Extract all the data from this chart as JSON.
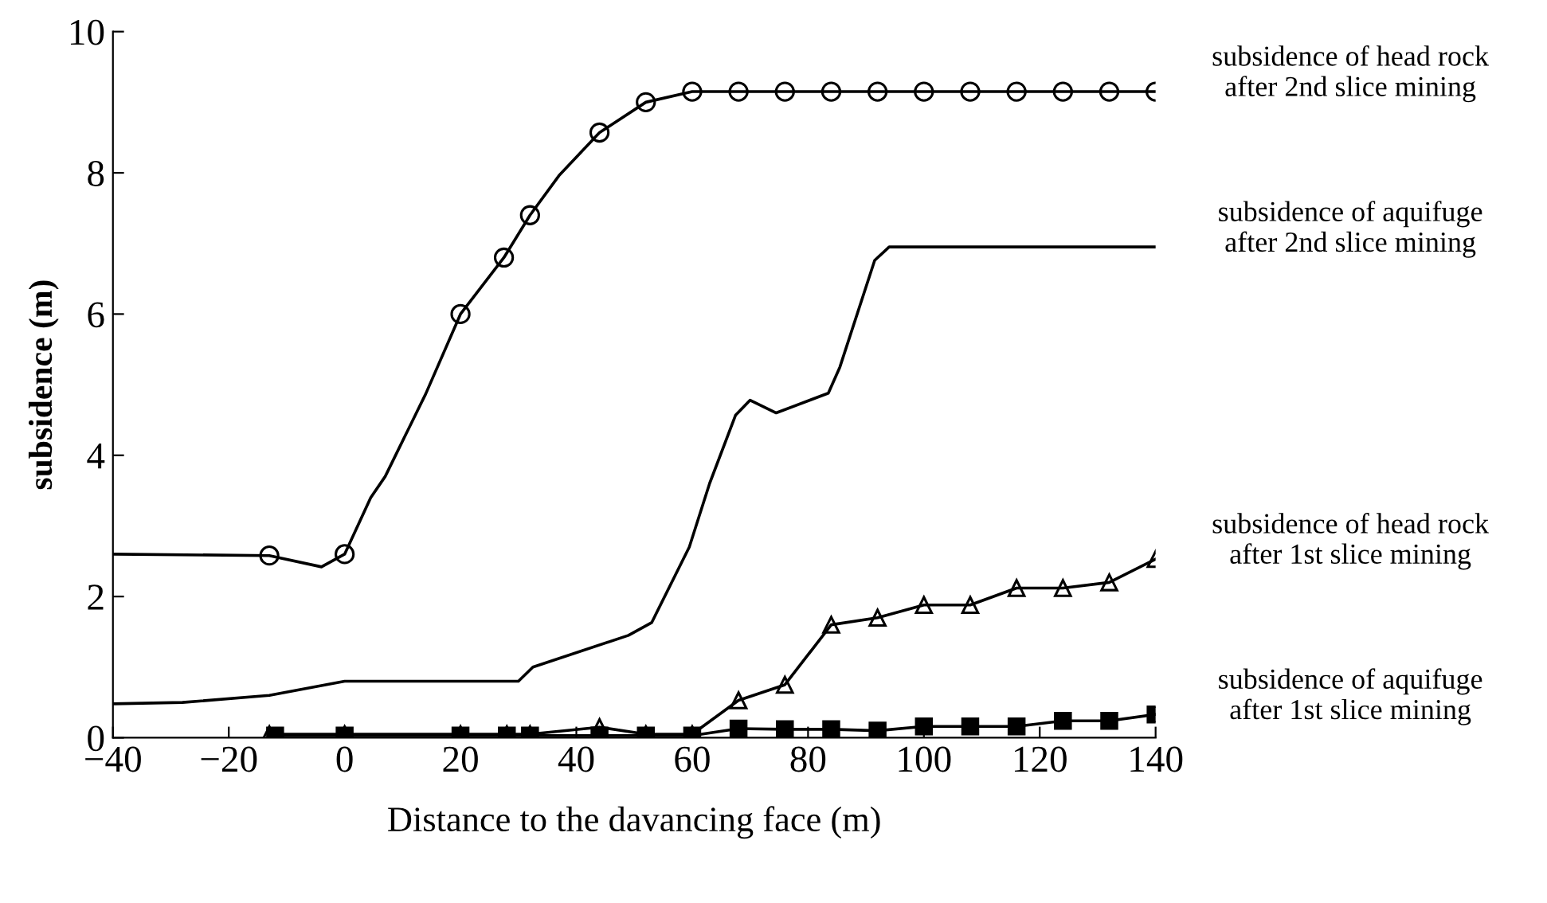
{
  "chart_data": {
    "type": "line",
    "xlabel": "Distance to the davancing face (m)",
    "ylabel": "subsidence (m)",
    "xlim": [
      -40,
      140
    ],
    "ylim": [
      0,
      10
    ],
    "xticks": [
      -40,
      -20,
      0,
      20,
      40,
      60,
      80,
      100,
      120,
      140
    ],
    "yticks": [
      0,
      2,
      4,
      6,
      8,
      10
    ],
    "grid": false,
    "series": [
      {
        "color": "#000000",
        "marker": "none",
        "x": [
          -40,
          -13,
          -4,
          0,
          4.5,
          7,
          14,
          20,
          27.5,
          32,
          37,
          44,
          52,
          60,
          140
        ],
        "values": [
          2.6,
          2.58,
          2.42,
          2.6,
          3.4,
          3.7,
          4.87,
          6.0,
          6.8,
          7.4,
          7.96,
          8.57,
          9.0,
          9.15,
          9.15
        ]
      },
      {
        "type": "scatter",
        "name": "subsidence of head rock\nafter 2nd slice mining",
        "color": "#000000",
        "marker": "circle",
        "x": [
          -13,
          0,
          20,
          27.5,
          32,
          44,
          52,
          60,
          68,
          76,
          84,
          92,
          100,
          108,
          116,
          124,
          132,
          140
        ],
        "values": [
          2.58,
          2.6,
          6.0,
          6.8,
          7.4,
          8.57,
          9.0,
          9.15,
          9.15,
          9.15,
          9.15,
          9.15,
          9.15,
          9.15,
          9.15,
          9.15,
          9.15,
          9.15
        ]
      },
      {
        "name": "subsidence of aquifuge\nafter 2nd slice mining",
        "color": "#000000",
        "marker": "none",
        "x": [
          -40,
          -28,
          -13,
          0,
          30,
          32.5,
          49,
          53,
          59.5,
          63,
          67.5,
          70,
          74.5,
          83.5,
          85.5,
          91.5,
          94,
          140
        ],
        "values": [
          0.48,
          0.5,
          0.6,
          0.8,
          0.8,
          1.0,
          1.45,
          1.63,
          2.7,
          3.6,
          4.57,
          4.78,
          4.6,
          4.88,
          5.25,
          6.76,
          6.95,
          6.95
        ]
      },
      {
        "name": "subsidence of head rock\nafter 1st slice mining",
        "color": "#000000",
        "marker": "triangle",
        "x": [
          -13,
          0,
          20,
          28,
          32,
          44,
          52,
          60,
          68,
          76,
          84,
          92,
          100,
          108,
          116,
          124,
          132,
          140
        ],
        "values": [
          0.05,
          0.05,
          0.05,
          0.05,
          0.05,
          0.15,
          0.05,
          0.05,
          0.53,
          0.75,
          1.6,
          1.7,
          1.88,
          1.88,
          2.12,
          2.12,
          2.2,
          2.53
        ]
      },
      {
        "name": "subsidence of aquifuge\nafter 1st slice mining",
        "color": "#000000",
        "marker": "square",
        "x": [
          -12,
          0,
          20,
          28,
          32,
          44,
          52,
          60,
          68,
          76,
          84,
          92,
          100,
          108,
          116,
          124,
          132,
          140
        ],
        "values": [
          0.03,
          0.03,
          0.03,
          0.03,
          0.03,
          0.03,
          0.03,
          0.03,
          0.13,
          0.12,
          0.12,
          0.1,
          0.16,
          0.16,
          0.16,
          0.24,
          0.24,
          0.33
        ]
      }
    ]
  }
}
